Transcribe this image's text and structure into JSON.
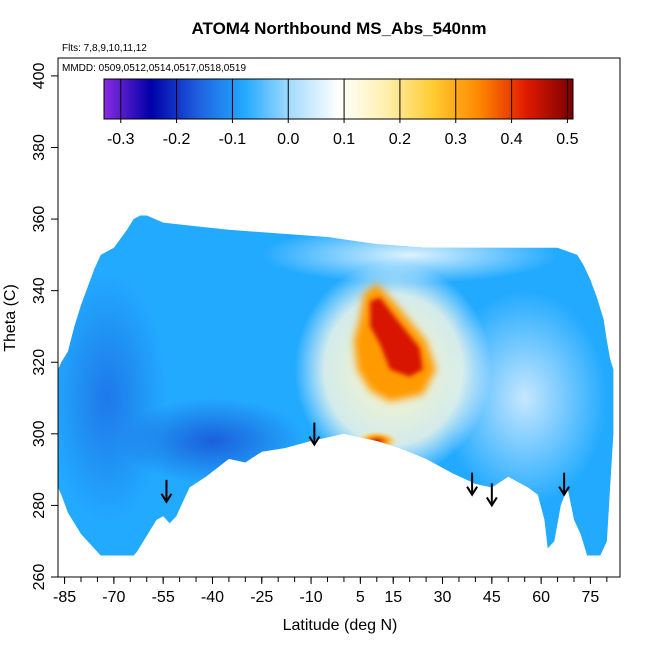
{
  "chart_data": {
    "type": "heatmap",
    "title": "ATOM4 Northbound MS_Abs_540nm",
    "flights_note": "Flts: 7,8,9,10,11,12",
    "dates_note": "MMDD: 0509,0512,0514,0517,0518,0519",
    "xlabel": "Latitude (deg N)",
    "ylabel": "Theta (C)",
    "xlim": [
      -87,
      84
    ],
    "ylim": [
      260,
      405
    ],
    "x_ticks": [
      -85,
      -70,
      -55,
      -40,
      -25,
      -10,
      5,
      15,
      30,
      45,
      60,
      75
    ],
    "x_tick_labels": [
      "-85",
      "-70",
      "-55",
      "-40",
      "-25",
      "-10",
      "5",
      "15",
      "30",
      "45",
      "60",
      "75"
    ],
    "x_minor_step": 5,
    "y_ticks": [
      260,
      280,
      300,
      320,
      340,
      360,
      380,
      400
    ],
    "y_tick_labels": [
      "260",
      "280",
      "300",
      "320",
      "340",
      "360",
      "380",
      "400"
    ],
    "colorbar": {
      "range": [
        -0.33,
        0.51
      ],
      "ticks": [
        -0.3,
        -0.2,
        -0.1,
        0.0,
        0.1,
        0.2,
        0.3,
        0.4,
        0.5
      ],
      "tick_labels": [
        "-0.3",
        "-0.2",
        "-0.1",
        "0.0",
        "0.1",
        "0.2",
        "0.3",
        "0.4",
        "0.5"
      ],
      "colors": [
        "#8a2be2",
        "#0000a8",
        "#1f5fe0",
        "#22aaff",
        "#a8dcff",
        "#ffffff",
        "#fff0b0",
        "#ffcc33",
        "#ff8800",
        "#e01a00",
        "#7a0000"
      ]
    },
    "arrows": [
      {
        "lat": -54,
        "theta": 281
      },
      {
        "lat": -9,
        "theta": 297
      },
      {
        "lat": 39,
        "theta": 283
      },
      {
        "lat": 45,
        "theta": 280
      },
      {
        "lat": 67,
        "theta": 283
      }
    ],
    "field": {
      "background_value": -0.02,
      "features": [
        {
          "name": "southern-low",
          "lat": -75,
          "theta": 315,
          "value": -0.09
        },
        {
          "name": "low-band",
          "lat": -40,
          "theta": 300,
          "value": -0.08
        },
        {
          "name": "plume-core",
          "lat": 15,
          "theta": 325,
          "value": 0.45
        },
        {
          "name": "plume-edge",
          "lat": 20,
          "theta": 315,
          "value": 0.22
        },
        {
          "name": "lower-plume",
          "lat": 10,
          "theta": 299,
          "value": 0.25
        },
        {
          "name": "upper-band",
          "lat": 20,
          "theta": 350,
          "value": 0.06
        },
        {
          "name": "northern-light",
          "lat": 55,
          "theta": 310,
          "value": 0.04
        }
      ]
    }
  }
}
